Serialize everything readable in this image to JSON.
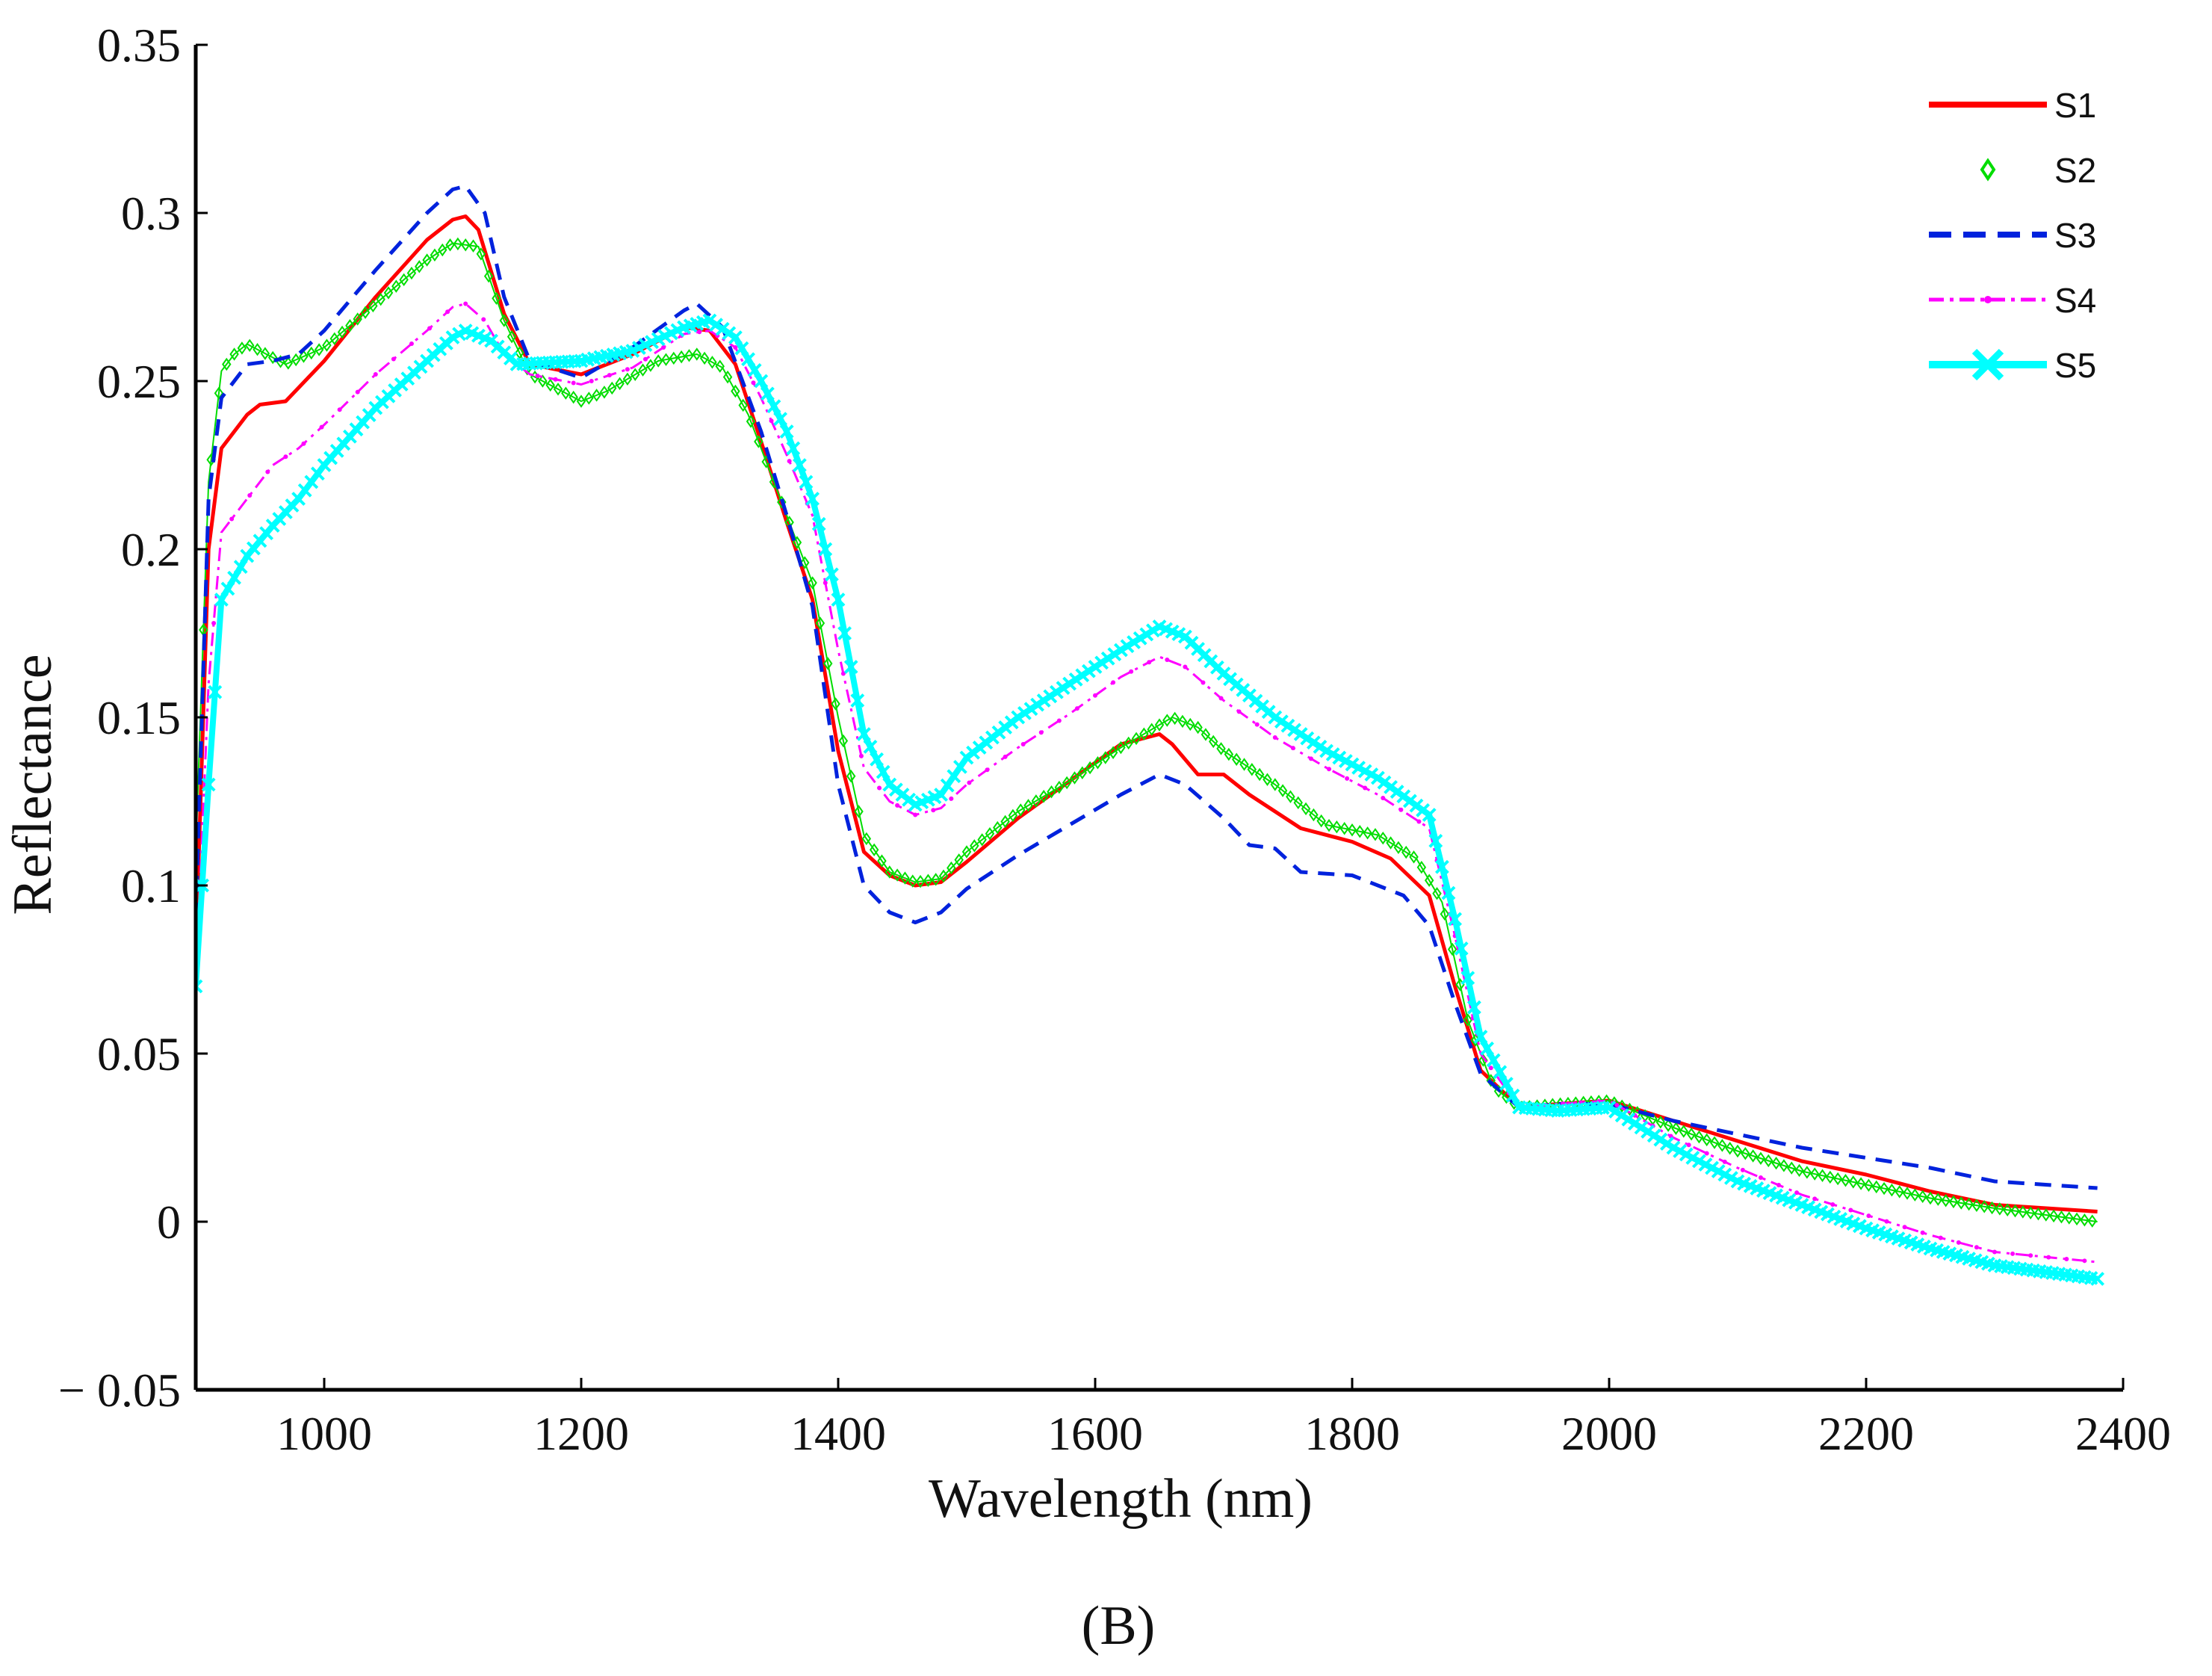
{
  "chart_data": {
    "type": "line",
    "title": "",
    "panel_label": "(B)",
    "xlabel": "Wavelength (nm)",
    "ylabel": "Reflectance",
    "xlim": [
      900,
      2400
    ],
    "ylim": [
      -0.05,
      0.35
    ],
    "x_ticks": [
      1000,
      1200,
      1400,
      1600,
      1800,
      2000,
      2200,
      2400
    ],
    "y_ticks": [
      -0.05,
      0,
      0.05,
      0.1,
      0.15,
      0.2,
      0.25,
      0.3,
      0.35
    ],
    "x_tick_labels": [
      "1000",
      "1200",
      "1400",
      "1600",
      "1800",
      "2000",
      "2200",
      "2400"
    ],
    "y_tick_labels": [
      "− 0.05",
      "0",
      "0.05",
      "0.1",
      "0.15",
      "0.2",
      "0.25",
      "0.3",
      "0.35"
    ],
    "grid": false,
    "legend_position": "top-right",
    "series": [
      {
        "name": "S1",
        "color": "#ff0000",
        "style": "solid",
        "points": [
          [
            900,
            0.08
          ],
          [
            910,
            0.2
          ],
          [
            920,
            0.23
          ],
          [
            940,
            0.24
          ],
          [
            950,
            0.243
          ],
          [
            970,
            0.244
          ],
          [
            1000,
            0.256
          ],
          [
            1040,
            0.275
          ],
          [
            1080,
            0.292
          ],
          [
            1100,
            0.298
          ],
          [
            1110,
            0.299
          ],
          [
            1120,
            0.295
          ],
          [
            1140,
            0.27
          ],
          [
            1160,
            0.255
          ],
          [
            1200,
            0.252
          ],
          [
            1240,
            0.258
          ],
          [
            1280,
            0.266
          ],
          [
            1300,
            0.265
          ],
          [
            1320,
            0.255
          ],
          [
            1340,
            0.232
          ],
          [
            1360,
            0.208
          ],
          [
            1380,
            0.185
          ],
          [
            1400,
            0.14
          ],
          [
            1420,
            0.11
          ],
          [
            1440,
            0.103
          ],
          [
            1460,
            0.1
          ],
          [
            1480,
            0.101
          ],
          [
            1500,
            0.107
          ],
          [
            1540,
            0.12
          ],
          [
            1580,
            0.131
          ],
          [
            1620,
            0.142
          ],
          [
            1650,
            0.145
          ],
          [
            1660,
            0.142
          ],
          [
            1680,
            0.133
          ],
          [
            1700,
            0.133
          ],
          [
            1720,
            0.127
          ],
          [
            1760,
            0.117
          ],
          [
            1800,
            0.113
          ],
          [
            1830,
            0.108
          ],
          [
            1860,
            0.097
          ],
          [
            1880,
            0.07
          ],
          [
            1900,
            0.045
          ],
          [
            1930,
            0.034
          ],
          [
            1960,
            0.035
          ],
          [
            2000,
            0.036
          ],
          [
            2050,
            0.03
          ],
          [
            2100,
            0.024
          ],
          [
            2150,
            0.018
          ],
          [
            2200,
            0.014
          ],
          [
            2250,
            0.009
          ],
          [
            2300,
            0.005
          ],
          [
            2380,
            0.003
          ]
        ]
      },
      {
        "name": "S2",
        "color": "#00dd00",
        "style": "diamond-markers",
        "points": [
          [
            900,
            0.11
          ],
          [
            910,
            0.22
          ],
          [
            920,
            0.253
          ],
          [
            930,
            0.258
          ],
          [
            940,
            0.261
          ],
          [
            955,
            0.258
          ],
          [
            970,
            0.255
          ],
          [
            1000,
            0.26
          ],
          [
            1040,
            0.273
          ],
          [
            1080,
            0.286
          ],
          [
            1100,
            0.291
          ],
          [
            1120,
            0.29
          ],
          [
            1140,
            0.268
          ],
          [
            1160,
            0.252
          ],
          [
            1200,
            0.244
          ],
          [
            1220,
            0.247
          ],
          [
            1260,
            0.256
          ],
          [
            1290,
            0.258
          ],
          [
            1310,
            0.254
          ],
          [
            1330,
            0.24
          ],
          [
            1360,
            0.21
          ],
          [
            1380,
            0.19
          ],
          [
            1400,
            0.15
          ],
          [
            1420,
            0.115
          ],
          [
            1440,
            0.104
          ],
          [
            1460,
            0.101
          ],
          [
            1480,
            0.102
          ],
          [
            1500,
            0.11
          ],
          [
            1540,
            0.122
          ],
          [
            1580,
            0.131
          ],
          [
            1620,
            0.141
          ],
          [
            1660,
            0.15
          ],
          [
            1680,
            0.147
          ],
          [
            1700,
            0.14
          ],
          [
            1740,
            0.13
          ],
          [
            1780,
            0.118
          ],
          [
            1820,
            0.115
          ],
          [
            1850,
            0.108
          ],
          [
            1870,
            0.095
          ],
          [
            1890,
            0.06
          ],
          [
            1910,
            0.04
          ],
          [
            1930,
            0.034
          ],
          [
            1960,
            0.035
          ],
          [
            2000,
            0.036
          ],
          [
            2050,
            0.028
          ],
          [
            2100,
            0.021
          ],
          [
            2150,
            0.015
          ],
          [
            2200,
            0.011
          ],
          [
            2250,
            0.007
          ],
          [
            2300,
            0.004
          ],
          [
            2380,
            0.0
          ]
        ]
      },
      {
        "name": "S3",
        "color": "#0022dd",
        "style": "dashed",
        "points": [
          [
            900,
            0.09
          ],
          [
            910,
            0.215
          ],
          [
            920,
            0.245
          ],
          [
            940,
            0.255
          ],
          [
            960,
            0.256
          ],
          [
            980,
            0.258
          ],
          [
            1000,
            0.265
          ],
          [
            1040,
            0.283
          ],
          [
            1080,
            0.3
          ],
          [
            1100,
            0.307
          ],
          [
            1110,
            0.308
          ],
          [
            1125,
            0.3
          ],
          [
            1140,
            0.275
          ],
          [
            1160,
            0.256
          ],
          [
            1200,
            0.251
          ],
          [
            1240,
            0.26
          ],
          [
            1280,
            0.271
          ],
          [
            1290,
            0.273
          ],
          [
            1310,
            0.266
          ],
          [
            1340,
            0.235
          ],
          [
            1360,
            0.21
          ],
          [
            1380,
            0.183
          ],
          [
            1400,
            0.13
          ],
          [
            1420,
            0.1
          ],
          [
            1440,
            0.092
          ],
          [
            1460,
            0.089
          ],
          [
            1480,
            0.092
          ],
          [
            1500,
            0.099
          ],
          [
            1540,
            0.109
          ],
          [
            1580,
            0.118
          ],
          [
            1620,
            0.127
          ],
          [
            1650,
            0.133
          ],
          [
            1670,
            0.13
          ],
          [
            1700,
            0.12
          ],
          [
            1720,
            0.112
          ],
          [
            1740,
            0.111
          ],
          [
            1760,
            0.104
          ],
          [
            1800,
            0.103
          ],
          [
            1840,
            0.097
          ],
          [
            1860,
            0.088
          ],
          [
            1880,
            0.065
          ],
          [
            1900,
            0.044
          ],
          [
            1930,
            0.034
          ],
          [
            1960,
            0.035
          ],
          [
            2000,
            0.035
          ],
          [
            2050,
            0.03
          ],
          [
            2100,
            0.026
          ],
          [
            2150,
            0.022
          ],
          [
            2200,
            0.019
          ],
          [
            2250,
            0.016
          ],
          [
            2300,
            0.012
          ],
          [
            2380,
            0.01
          ]
        ]
      },
      {
        "name": "S4",
        "color": "#ff00ff",
        "style": "dash-dot",
        "points": [
          [
            900,
            0.07
          ],
          [
            910,
            0.16
          ],
          [
            920,
            0.205
          ],
          [
            940,
            0.215
          ],
          [
            960,
            0.225
          ],
          [
            980,
            0.23
          ],
          [
            1000,
            0.237
          ],
          [
            1040,
            0.252
          ],
          [
            1080,
            0.265
          ],
          [
            1100,
            0.272
          ],
          [
            1110,
            0.273
          ],
          [
            1125,
            0.268
          ],
          [
            1140,
            0.258
          ],
          [
            1160,
            0.252
          ],
          [
            1200,
            0.249
          ],
          [
            1240,
            0.254
          ],
          [
            1280,
            0.264
          ],
          [
            1300,
            0.265
          ],
          [
            1320,
            0.26
          ],
          [
            1340,
            0.245
          ],
          [
            1360,
            0.228
          ],
          [
            1380,
            0.21
          ],
          [
            1400,
            0.17
          ],
          [
            1420,
            0.135
          ],
          [
            1440,
            0.125
          ],
          [
            1460,
            0.121
          ],
          [
            1480,
            0.123
          ],
          [
            1500,
            0.13
          ],
          [
            1540,
            0.141
          ],
          [
            1580,
            0.151
          ],
          [
            1620,
            0.162
          ],
          [
            1650,
            0.168
          ],
          [
            1670,
            0.165
          ],
          [
            1700,
            0.155
          ],
          [
            1740,
            0.144
          ],
          [
            1780,
            0.135
          ],
          [
            1820,
            0.127
          ],
          [
            1860,
            0.117
          ],
          [
            1880,
            0.085
          ],
          [
            1900,
            0.05
          ],
          [
            1930,
            0.034
          ],
          [
            1960,
            0.035
          ],
          [
            2000,
            0.036
          ],
          [
            2050,
            0.025
          ],
          [
            2100,
            0.016
          ],
          [
            2150,
            0.008
          ],
          [
            2200,
            0.002
          ],
          [
            2250,
            -0.004
          ],
          [
            2300,
            -0.009
          ],
          [
            2380,
            -0.012
          ]
        ]
      },
      {
        "name": "S5",
        "color": "#00ffff",
        "style": "thick-x-markers",
        "points": [
          [
            900,
            0.07
          ],
          [
            910,
            0.13
          ],
          [
            920,
            0.185
          ],
          [
            940,
            0.198
          ],
          [
            960,
            0.207
          ],
          [
            980,
            0.215
          ],
          [
            1000,
            0.225
          ],
          [
            1040,
            0.242
          ],
          [
            1080,
            0.256
          ],
          [
            1100,
            0.263
          ],
          [
            1110,
            0.265
          ],
          [
            1130,
            0.262
          ],
          [
            1150,
            0.255
          ],
          [
            1200,
            0.256
          ],
          [
            1240,
            0.259
          ],
          [
            1280,
            0.266
          ],
          [
            1300,
            0.268
          ],
          [
            1320,
            0.263
          ],
          [
            1340,
            0.25
          ],
          [
            1360,
            0.235
          ],
          [
            1380,
            0.215
          ],
          [
            1400,
            0.185
          ],
          [
            1420,
            0.145
          ],
          [
            1440,
            0.13
          ],
          [
            1460,
            0.124
          ],
          [
            1480,
            0.127
          ],
          [
            1500,
            0.138
          ],
          [
            1540,
            0.15
          ],
          [
            1580,
            0.16
          ],
          [
            1620,
            0.17
          ],
          [
            1650,
            0.177
          ],
          [
            1670,
            0.174
          ],
          [
            1700,
            0.163
          ],
          [
            1740,
            0.15
          ],
          [
            1780,
            0.14
          ],
          [
            1820,
            0.132
          ],
          [
            1860,
            0.121
          ],
          [
            1880,
            0.09
          ],
          [
            1900,
            0.055
          ],
          [
            1930,
            0.034
          ],
          [
            1960,
            0.033
          ],
          [
            2000,
            0.034
          ],
          [
            2050,
            0.022
          ],
          [
            2100,
            0.012
          ],
          [
            2150,
            0.005
          ],
          [
            2200,
            -0.002
          ],
          [
            2250,
            -0.008
          ],
          [
            2300,
            -0.013
          ],
          [
            2380,
            -0.017
          ]
        ]
      }
    ]
  }
}
